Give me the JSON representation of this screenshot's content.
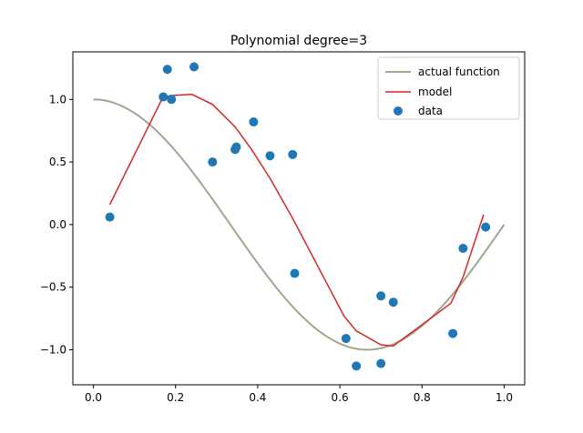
{
  "chart_data": {
    "type": "line",
    "title": "Polynomial degree=3",
    "xlabel": "",
    "ylabel": "",
    "xlim": [
      -0.05,
      1.05
    ],
    "ylim": [
      -1.28,
      1.38
    ],
    "xticks": [
      0.0,
      0.2,
      0.4,
      0.6,
      0.8,
      1.0
    ],
    "xtick_labels": [
      "0.0",
      "0.2",
      "0.4",
      "0.6",
      "0.8",
      "1.0"
    ],
    "yticks": [
      -1.0,
      -0.5,
      0.0,
      0.5,
      1.0
    ],
    "ytick_labels": [
      "−1.0",
      "−0.5",
      "0.0",
      "0.5",
      "1.0"
    ],
    "grid": false,
    "legend_position": "top-right",
    "series": [
      {
        "name": "actual function",
        "kind": "line",
        "color": "#a3a68d",
        "function": "cos(1.5*pi*x)",
        "x_range": [
          0.0,
          1.0
        ]
      },
      {
        "name": "model",
        "kind": "line",
        "color": "#d62728",
        "x": [
          0.04,
          0.165,
          0.185,
          0.24,
          0.29,
          0.345,
          0.385,
          0.43,
          0.485,
          0.61,
          0.64,
          0.7,
          0.73,
          0.87,
          0.9,
          0.95
        ],
        "y": [
          0.16,
          0.99,
          1.03,
          1.04,
          0.96,
          0.78,
          0.6,
          0.37,
          0.05,
          -0.73,
          -0.85,
          -0.96,
          -0.97,
          -0.63,
          -0.42,
          0.08
        ]
      },
      {
        "name": "data",
        "kind": "scatter",
        "color": "#1f77b4",
        "x": [
          0.04,
          0.17,
          0.18,
          0.19,
          0.245,
          0.29,
          0.345,
          0.348,
          0.39,
          0.43,
          0.485,
          0.49,
          0.615,
          0.64,
          0.7,
          0.7,
          0.73,
          0.875,
          0.9,
          0.955
        ],
        "y": [
          0.06,
          1.02,
          1.24,
          1.0,
          1.26,
          0.5,
          0.6,
          0.62,
          0.82,
          0.55,
          0.56,
          -0.39,
          -0.91,
          -1.13,
          -1.11,
          -0.57,
          -0.62,
          -0.87,
          -0.19,
          -0.02
        ]
      }
    ]
  }
}
